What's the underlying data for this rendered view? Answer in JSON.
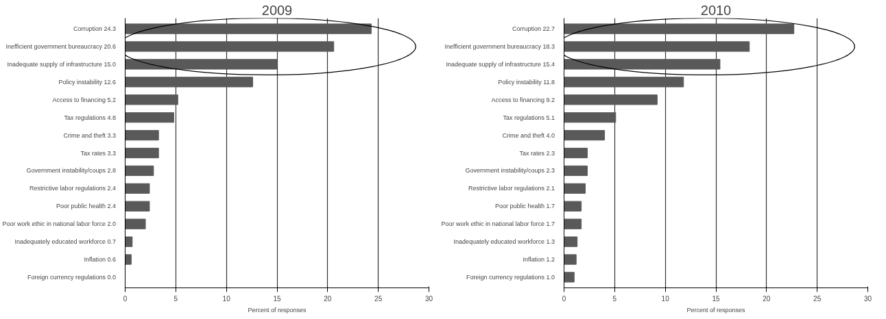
{
  "chart_data": [
    {
      "type": "bar",
      "orientation": "horizontal",
      "title": "2009",
      "xlabel": "Percent of responses",
      "categories": [
        "Corruption",
        "Inefficient government bureaucracy",
        "Inadequate supply of infrastructure",
        "Policy instability",
        "Access to financing",
        "Tax regulations",
        "Crime and theft",
        "Tax rates",
        "Government instability/coups",
        "Restrictive labor regulations",
        "Poor public health",
        "Poor work ethic in national labor force",
        "Inadequately educated workforce",
        "Inflation",
        "Foreign currency regulations"
      ],
      "values": [
        24.3,
        20.6,
        15.0,
        12.6,
        5.2,
        4.8,
        3.3,
        3.3,
        2.8,
        2.4,
        2.4,
        2.0,
        0.7,
        0.6,
        0.0
      ],
      "value_labels": [
        "24.3",
        "20.6",
        "15.0",
        "12.6",
        "5.2",
        "4.8",
        "3.3",
        "3.3",
        "2.8",
        "2.4",
        "2.4",
        "2.0",
        "0.7",
        "0.6",
        "0.0"
      ],
      "color": "#595959",
      "xlim": [
        0,
        30
      ],
      "xticks": [
        0,
        5,
        10,
        15,
        20,
        25,
        30
      ],
      "grid": "x"
    },
    {
      "type": "bar",
      "orientation": "horizontal",
      "title": "2010",
      "xlabel": "Percent of responses",
      "categories": [
        "Corruption",
        "Inefficient government bureaucracy",
        "Inadequate supply of infrastructure",
        "Policy instability",
        "Access to financing",
        "Tax regulations",
        "Crime and theft",
        "Tax rates",
        "Government instability/coups",
        "Restrictive labor regulations",
        "Poor public health",
        "Poor work ethic in national labor force",
        "Inadequately educated workforce",
        "Inflation",
        "Foreign currency regulations"
      ],
      "values": [
        22.7,
        18.3,
        15.4,
        11.8,
        9.2,
        5.1,
        4.0,
        2.3,
        2.3,
        2.1,
        1.7,
        1.7,
        1.3,
        1.2,
        1.0
      ],
      "value_labels": [
        "22.7",
        "18.3",
        "15.4",
        "11.8",
        "9.2",
        "5.1",
        "4.0",
        "2.3",
        "2.3",
        "2.1",
        "1.7",
        "1.7",
        "1.3",
        "1.2",
        "1.0"
      ],
      "color": "#595959",
      "xlim": [
        0,
        30
      ],
      "xticks": [
        0,
        5,
        10,
        15,
        20,
        25,
        30
      ],
      "grid": "x"
    }
  ]
}
